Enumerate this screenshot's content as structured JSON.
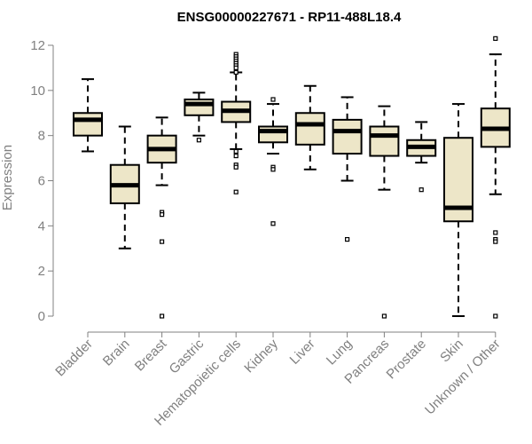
{
  "chart_data": {
    "type": "boxplot",
    "title": "ENSG00000227671 - RP11-488L18.4",
    "xlabel": "",
    "ylabel": "Expression",
    "ylim": [
      0,
      12
    ],
    "yticks": [
      0,
      2,
      4,
      6,
      8,
      10,
      12
    ],
    "grid": false,
    "box_fill": "#ede6c8",
    "categories": [
      "Bladder",
      "Brain",
      "Breast",
      "Gastric",
      "Hematopoietic cells",
      "Kidney",
      "Liver",
      "Lung",
      "Pancreas",
      "Prostate",
      "Skin",
      "Unknown / Other"
    ],
    "boxes": [
      {
        "name": "Bladder",
        "min": 7.3,
        "q1": 8.0,
        "median": 8.7,
        "q3": 9.0,
        "max": 10.5,
        "outliers": []
      },
      {
        "name": "Brain",
        "min": 3.0,
        "q1": 5.0,
        "median": 5.8,
        "q3": 6.7,
        "max": 8.4,
        "outliers": []
      },
      {
        "name": "Breast",
        "min": 5.8,
        "q1": 6.8,
        "median": 7.4,
        "q3": 8.0,
        "max": 8.8,
        "outliers": [
          4.6,
          4.5,
          3.3,
          0.0
        ]
      },
      {
        "name": "Gastric",
        "min": 8.0,
        "q1": 8.9,
        "median": 9.4,
        "q3": 9.6,
        "max": 9.9,
        "outliers": [
          7.8
        ]
      },
      {
        "name": "Hematopoietic cells",
        "min": 7.4,
        "q1": 8.6,
        "median": 9.1,
        "q3": 9.5,
        "max": 10.8,
        "outliers": [
          11.6,
          11.5,
          11.4,
          11.3,
          11.2,
          11.1,
          11.0,
          10.8,
          7.3,
          7.1,
          6.7,
          6.6,
          5.5
        ]
      },
      {
        "name": "Kidney",
        "min": 7.2,
        "q1": 7.7,
        "median": 8.2,
        "q3": 8.4,
        "max": 9.4,
        "outliers": [
          9.6,
          6.6,
          6.5,
          4.1
        ]
      },
      {
        "name": "Liver",
        "min": 6.5,
        "q1": 7.6,
        "median": 8.5,
        "q3": 9.0,
        "max": 10.2,
        "outliers": []
      },
      {
        "name": "Lung",
        "min": 6.0,
        "q1": 7.2,
        "median": 8.2,
        "q3": 8.7,
        "max": 9.7,
        "outliers": [
          3.4
        ]
      },
      {
        "name": "Pancreas",
        "min": 5.6,
        "q1": 7.1,
        "median": 8.0,
        "q3": 8.4,
        "max": 9.3,
        "outliers": [
          0.0
        ]
      },
      {
        "name": "Prostate",
        "min": 6.8,
        "q1": 7.1,
        "median": 7.5,
        "q3": 7.8,
        "max": 8.6,
        "outliers": [
          5.6
        ]
      },
      {
        "name": "Skin",
        "min": 0.0,
        "q1": 4.2,
        "median": 4.8,
        "q3": 7.9,
        "max": 9.4,
        "outliers": []
      },
      {
        "name": "Unknown / Other",
        "min": 5.4,
        "q1": 7.5,
        "median": 8.3,
        "q3": 9.2,
        "max": 11.6,
        "outliers": [
          12.3,
          3.7,
          3.4,
          3.3,
          0.0
        ]
      }
    ]
  }
}
